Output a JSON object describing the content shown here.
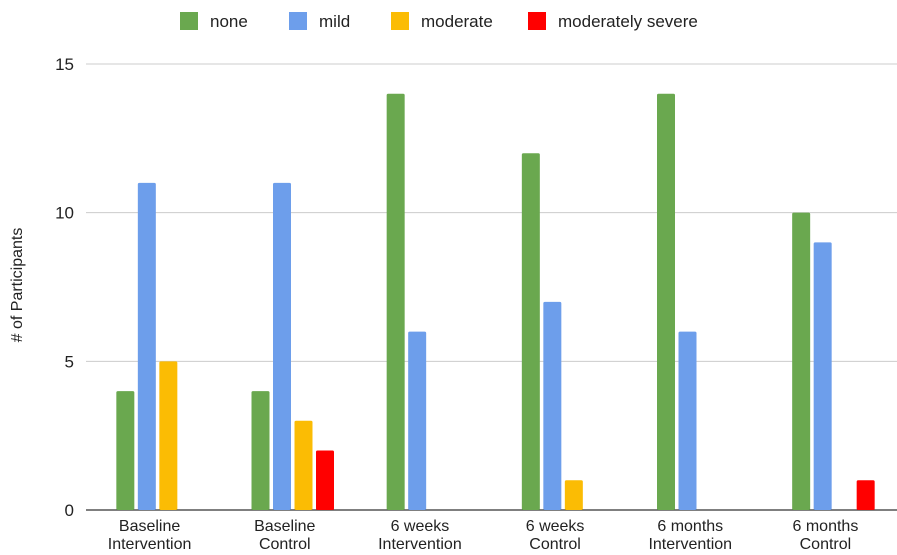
{
  "chart_data": {
    "type": "bar",
    "title": "",
    "xlabel": "",
    "ylabel": "# of Participants",
    "ylim": [
      0,
      15
    ],
    "yticks": [
      0,
      5,
      10,
      15
    ],
    "grid": true,
    "legend_position": "top",
    "categories": [
      [
        "Baseline",
        "Intervention"
      ],
      [
        "Baseline",
        "Control"
      ],
      [
        "6 weeks",
        "Intervention"
      ],
      [
        "6 weeks",
        "Control"
      ],
      [
        "6 months",
        "Intervention"
      ],
      [
        "6 months",
        "Control"
      ]
    ],
    "series": [
      {
        "name": "none",
        "color": "#6aa84f",
        "values": [
          4,
          4,
          14,
          12,
          14,
          10
        ]
      },
      {
        "name": "mild",
        "color": "#6d9eeb",
        "values": [
          11,
          11,
          6,
          7,
          6,
          9
        ]
      },
      {
        "name": "moderate",
        "color": "#fbbc04",
        "values": [
          5,
          3,
          0,
          1,
          0,
          0
        ]
      },
      {
        "name": "moderately  severe",
        "color": "#ff0000",
        "values": [
          0,
          2,
          0,
          0,
          0,
          1
        ]
      }
    ]
  }
}
